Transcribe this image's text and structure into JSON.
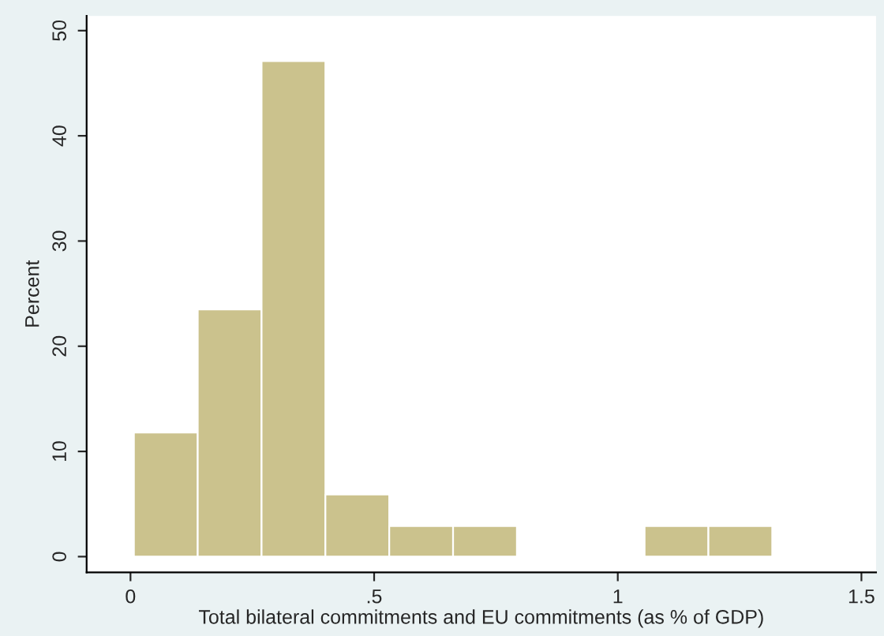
{
  "chart_data": {
    "type": "histogram",
    "xlabel": "Total bilateral commitments and EU commitments (as % of GDP)",
    "ylabel": "Percent",
    "bins": [
      0.007,
      0.138,
      0.269,
      0.4,
      0.531,
      0.662,
      0.793,
      0.924,
      1.055,
      1.186,
      1.317
    ],
    "values": [
      11.8,
      23.5,
      47.1,
      5.9,
      2.9,
      2.9,
      0,
      0,
      2.9,
      2.9
    ],
    "color": "#cbc28d",
    "xlim": [
      -0.09,
      1.53
    ],
    "ylim": [
      -1.5,
      51.4
    ],
    "xticks": [
      0,
      {
        "value": 0.5,
        "label": ".5"
      },
      1,
      1.5
    ],
    "yticks": [
      0,
      10,
      20,
      30,
      40,
      50
    ],
    "grid": false
  }
}
